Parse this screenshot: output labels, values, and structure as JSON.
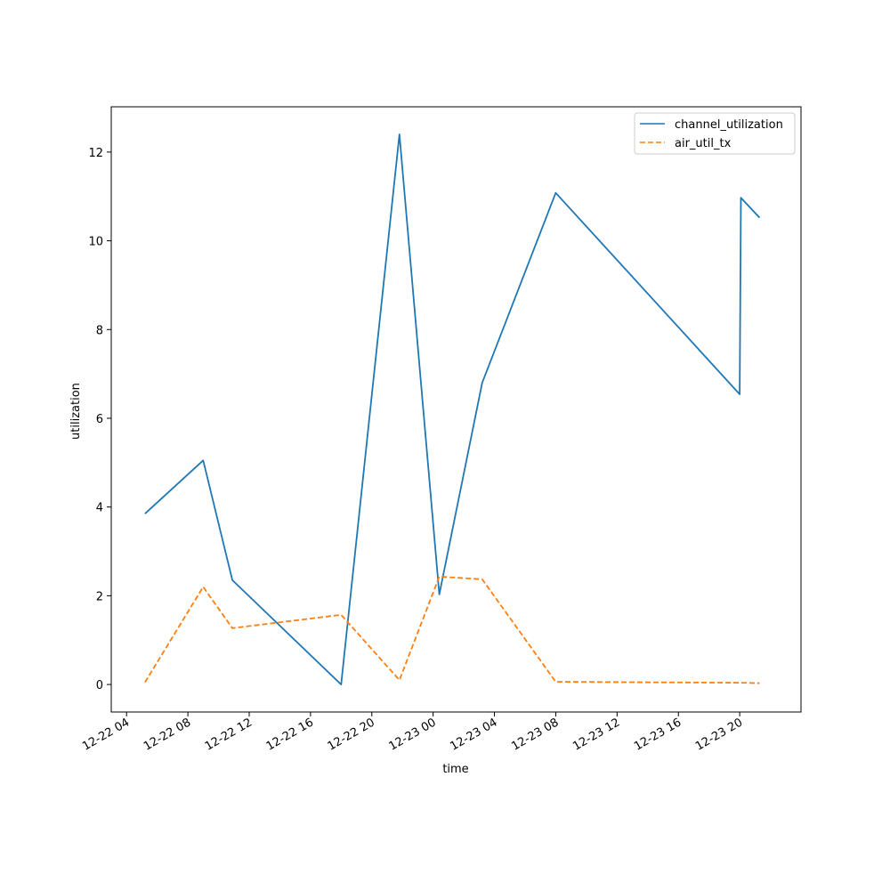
{
  "chart_data": {
    "type": "line",
    "xlabel": "time",
    "ylabel": "utilization",
    "x_axis": {
      "scale": "time",
      "range": [
        "2022-12-22 03:00",
        "2022-12-24 00:00"
      ],
      "ticks": [
        "2022-12-22 04:00",
        "2022-12-22 08:00",
        "2022-12-22 12:00",
        "2022-12-22 16:00",
        "2022-12-22 20:00",
        "2022-12-23 00:00",
        "2022-12-23 04:00",
        "2022-12-23 08:00",
        "2022-12-23 12:00",
        "2022-12-23 16:00",
        "2022-12-23 20:00"
      ],
      "tick_labels": [
        "12-22 04",
        "12-22 08",
        "12-22 12",
        "12-22 16",
        "12-22 20",
        "12-23 00",
        "12-23 04",
        "12-23 08",
        "12-23 12",
        "12-23 16",
        "12-23 20"
      ]
    },
    "y_axis": {
      "range": [
        -0.62,
        13.02
      ],
      "ticks": [
        0,
        2,
        4,
        6,
        8,
        10,
        12
      ],
      "tick_labels": [
        "0",
        "2",
        "4",
        "6",
        "8",
        "10",
        "12"
      ]
    },
    "grid": false,
    "legend": "top-right",
    "series": [
      {
        "name": "channel_utilization",
        "color": "#1f77b4",
        "style": "solid",
        "x": [
          "2022-12-22 05:12",
          "2022-12-22 09:00",
          "2022-12-22 10:54",
          "2022-12-22 18:00",
          "2022-12-22 21:48",
          "2022-12-23 00:24",
          "2022-12-23 03:12",
          "2022-12-23 08:00",
          "2022-12-23 20:00",
          "2022-12-23 20:05",
          "2022-12-23 21:18"
        ],
        "values": [
          3.85,
          5.05,
          2.35,
          0.0,
          12.4,
          2.03,
          6.8,
          11.08,
          6.54,
          10.97,
          10.52
        ]
      },
      {
        "name": "air_util_tx",
        "color": "#ff7f0e",
        "style": "dashed",
        "x": [
          "2022-12-22 05:12",
          "2022-12-22 09:00",
          "2022-12-22 10:54",
          "2022-12-22 18:00",
          "2022-12-22 21:48",
          "2022-12-23 00:24",
          "2022-12-23 03:12",
          "2022-12-23 08:00",
          "2022-12-23 20:00",
          "2022-12-23 20:05",
          "2022-12-23 21:18"
        ],
        "values": [
          0.05,
          2.2,
          1.27,
          1.57,
          0.1,
          2.43,
          2.37,
          0.06,
          0.04,
          0.04,
          0.03
        ]
      }
    ]
  }
}
